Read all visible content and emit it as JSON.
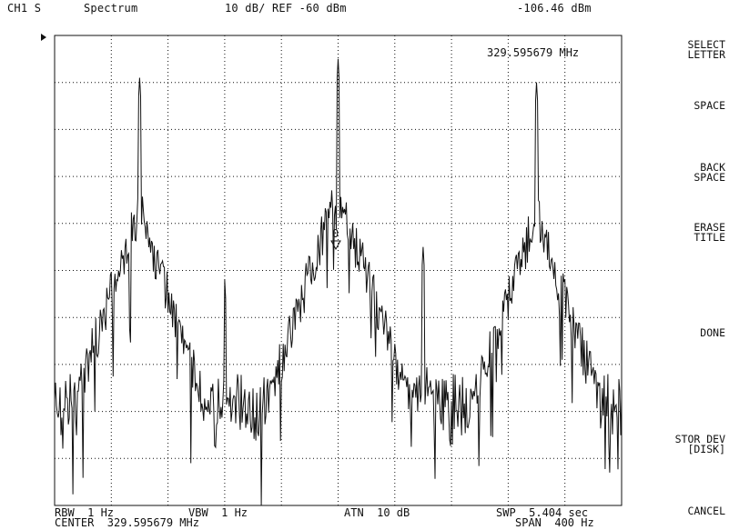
{
  "header": {
    "channel": "CH1 S",
    "mode": "Spectrum",
    "scale": "10 dB/ REF -60 dBm",
    "marker_value": "-106.46 dBm",
    "marker_freq": "329.595679 MHz"
  },
  "marker": {
    "label": "0"
  },
  "softkeys": [
    {
      "label": "SELECT\nLETTER"
    },
    {
      "label": "SPACE"
    },
    {
      "label": "BACK\nSPACE"
    },
    {
      "label": "ERASE\nTITLE"
    },
    {
      "label": "DONE"
    },
    {
      "label": "STOR DEV\n[DISK]"
    },
    {
      "label": "CANCEL"
    }
  ],
  "footer": {
    "rbw": "RBW  1 Hz",
    "vbw": "VBW  1 Hz",
    "atn": "ATN  10 dB",
    "swp": "SWP  5.404 sec",
    "center": "CENTER  329.595679 MHz",
    "span": "SPAN  400 Hz"
  },
  "chart_data": {
    "type": "line",
    "title": "",
    "xlabel": "",
    "ylabel": "",
    "xlim": [
      -200,
      200
    ],
    "ylim": [
      -160,
      -60
    ],
    "grid": true,
    "series": [
      {
        "values_desc": "spectrum trace with peaks",
        "peaks": [
          {
            "x": -140,
            "y": -69
          },
          {
            "x": -80,
            "y": -112
          },
          {
            "x": 0,
            "y": -65
          },
          {
            "x": 0,
            "y": -112
          },
          {
            "x": 60,
            "y": -105
          },
          {
            "x": 140,
            "y": -70
          }
        ]
      }
    ]
  }
}
